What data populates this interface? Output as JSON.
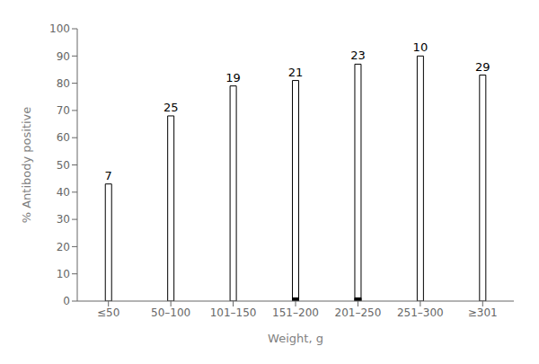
{
  "chart_data": {
    "type": "bar",
    "xlabel": "Weight, g",
    "ylabel": "% Antibody positive",
    "categories": [
      "≤50",
      "50–100",
      "101–150",
      "151–200",
      "201–250",
      "251–300",
      "≥301"
    ],
    "series": [
      {
        "color": "white",
        "values": [
          43,
          68,
          79,
          81,
          87,
          90,
          83
        ]
      },
      {
        "color": "black",
        "values": [
          0,
          0,
          0,
          1.2,
          1.2,
          0,
          0
        ]
      }
    ],
    "annotations": [
      "7",
      "25",
      "19",
      "21",
      "23",
      "10",
      "29"
    ],
    "ylim": [
      0,
      100
    ],
    "yticks": [
      0,
      10,
      20,
      30,
      40,
      50,
      60,
      70,
      80,
      90,
      100
    ],
    "grid": false
  }
}
